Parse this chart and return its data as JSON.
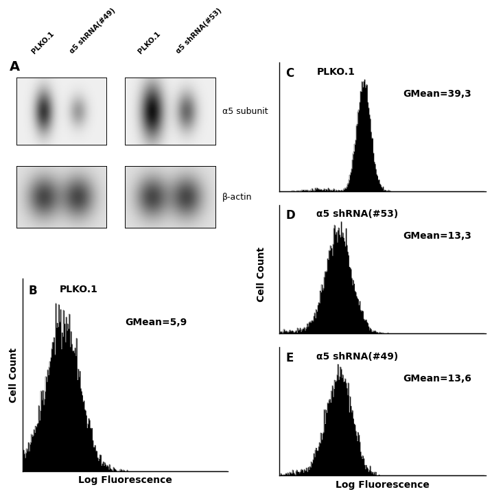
{
  "panel_A_label": "A",
  "panel_B_label": "B",
  "panel_C_label": "C",
  "panel_D_label": "D",
  "panel_E_label": "E",
  "panel_B_title": "PLKO.1",
  "panel_C_title": "PLKO.1",
  "panel_D_title": "α5 shRNA(#53)",
  "panel_E_title": "α5 shRNA(#49)",
  "panel_B_gmean": "GMean=5,9",
  "panel_C_gmean": "GMean=39,3",
  "panel_D_gmean": "GMean=13,3",
  "panel_E_gmean": "GMean=13,6",
  "xlabel": "Log Fluorescence",
  "ylabel": "Cell Count",
  "a5_subunit_label": "α5 subunit",
  "beta_actin_label": "β-actin",
  "col_labels": [
    "PLKO.1",
    "α5 shRNA(#49)",
    "PLKO.1",
    "α5 shRNA(#53)"
  ],
  "bg_color": "#ffffff",
  "hist_color": "#000000"
}
